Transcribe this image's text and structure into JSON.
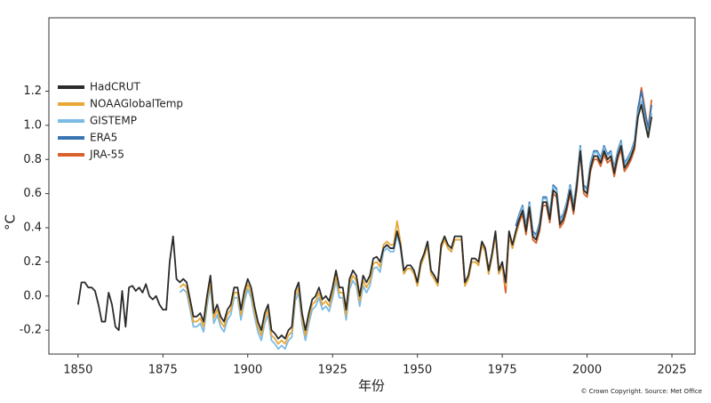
{
  "chart_data": {
    "type": "line",
    "y_label": "°C",
    "x_label": "年份",
    "credit": "© Crown Copyright. Source: Met Office",
    "xlim": [
      1841.4,
      2031.8
    ],
    "ylim": [
      -0.34,
      1.63
    ],
    "xticks": [
      1850,
      1875,
      1900,
      1925,
      1950,
      1975,
      2000,
      2025
    ],
    "yticks": [
      -0.2,
      {
        "value": 0,
        "label": "0.0"
      },
      0.2,
      0.4,
      0.6,
      0.8,
      {
        "value": 1,
        "label": "1.0"
      },
      1.2
    ],
    "legend": "upper left",
    "x": [
      1850,
      1851,
      1852,
      1853,
      1854,
      1855,
      1856,
      1857,
      1858,
      1859,
      1860,
      1861,
      1862,
      1863,
      1864,
      1865,
      1866,
      1867,
      1868,
      1869,
      1870,
      1871,
      1872,
      1873,
      1874,
      1875,
      1876,
      1877,
      1878,
      1879,
      1880,
      1881,
      1882,
      1883,
      1884,
      1885,
      1886,
      1887,
      1888,
      1889,
      1890,
      1891,
      1892,
      1893,
      1894,
      1895,
      1896,
      1897,
      1898,
      1899,
      1900,
      1901,
      1902,
      1903,
      1904,
      1905,
      1906,
      1907,
      1908,
      1909,
      1910,
      1911,
      1912,
      1913,
      1914,
      1915,
      1916,
      1917,
      1918,
      1919,
      1920,
      1921,
      1922,
      1923,
      1924,
      1925,
      1926,
      1927,
      1928,
      1929,
      1930,
      1931,
      1932,
      1933,
      1934,
      1935,
      1936,
      1937,
      1938,
      1939,
      1940,
      1941,
      1942,
      1943,
      1944,
      1945,
      1946,
      1947,
      1948,
      1949,
      1950,
      1951,
      1952,
      1953,
      1954,
      1955,
      1956,
      1957,
      1958,
      1959,
      1960,
      1961,
      1962,
      1963,
      1964,
      1965,
      1966,
      1967,
      1968,
      1969,
      1970,
      1971,
      1972,
      1973,
      1974,
      1975,
      1976,
      1977,
      1978,
      1979,
      1980,
      1981,
      1982,
      1983,
      1984,
      1985,
      1986,
      1987,
      1988,
      1989,
      1990,
      1991,
      1992,
      1993,
      1994,
      1995,
      1996,
      1997,
      1998,
      1999,
      2000,
      2001,
      2002,
      2003,
      2004,
      2005,
      2006,
      2007,
      2008,
      2009,
      2010,
      2011,
      2012,
      2013,
      2014,
      2015,
      2016,
      2017,
      2018,
      2019
    ],
    "series": [
      {
        "name": "HadCRUT",
        "color": "#2b2b2b",
        "values": [
          -0.05,
          0.08,
          0.08,
          0.05,
          0.05,
          0.03,
          -0.05,
          -0.15,
          -0.15,
          0.02,
          -0.05,
          -0.18,
          -0.2,
          0.03,
          -0.18,
          0.05,
          0.06,
          0.03,
          0.05,
          0.02,
          0.07,
          0,
          -0.02,
          0,
          -0.05,
          -0.08,
          -0.08,
          0.2,
          0.35,
          0.1,
          0.08,
          0.1,
          0.08,
          -0.02,
          -0.12,
          -0.12,
          -0.1,
          -0.15,
          0,
          0.12,
          -0.1,
          -0.05,
          -0.12,
          -0.15,
          -0.08,
          -0.05,
          0.05,
          0.05,
          -0.08,
          0.03,
          0.1,
          0.05,
          -0.06,
          -0.15,
          -0.2,
          -0.1,
          -0.05,
          -0.2,
          -0.22,
          -0.25,
          -0.23,
          -0.25,
          -0.2,
          -0.18,
          0.03,
          0.08,
          -0.1,
          -0.2,
          -0.1,
          -0.02,
          0,
          0.05,
          -0.02,
          0,
          -0.03,
          0.05,
          0.15,
          0.05,
          0.05,
          -0.08,
          0.1,
          0.15,
          0.12,
          0,
          0.12,
          0.08,
          0.12,
          0.22,
          0.23,
          0.2,
          0.28,
          0.3,
          0.28,
          0.28,
          0.38,
          0.3,
          0.15,
          0.18,
          0.18,
          0.15,
          0.08,
          0.2,
          0.25,
          0.32,
          0.15,
          0.12,
          0.08,
          0.3,
          0.35,
          0.3,
          0.28,
          0.35,
          0.35,
          0.35,
          0.08,
          0.12,
          0.22,
          0.22,
          0.2,
          0.32,
          0.28,
          0.15,
          0.25,
          0.38,
          0.15,
          0.2,
          0.08,
          0.38,
          0.3,
          0.38,
          0.45,
          0.5,
          0.38,
          0.52,
          0.35,
          0.33,
          0.4,
          0.55,
          0.55,
          0.45,
          0.62,
          0.6,
          0.42,
          0.45,
          0.52,
          0.62,
          0.5,
          0.65,
          0.85,
          0.62,
          0.6,
          0.75,
          0.82,
          0.82,
          0.78,
          0.85,
          0.8,
          0.82,
          0.72,
          0.82,
          0.88,
          0.75,
          0.78,
          0.82,
          0.88,
          1.05,
          1.12,
          1.02,
          0.93,
          1.05
        ]
      },
      {
        "name": "NOAAGlobalTemp",
        "color": "#e8a838",
        "values": [
          null,
          null,
          null,
          null,
          null,
          null,
          null,
          null,
          null,
          null,
          null,
          null,
          null,
          null,
          null,
          null,
          null,
          null,
          null,
          null,
          null,
          null,
          null,
          null,
          null,
          null,
          null,
          null,
          null,
          null,
          0.05,
          0.07,
          0.05,
          -0.05,
          -0.15,
          -0.15,
          -0.13,
          -0.18,
          -0.03,
          0.09,
          -0.13,
          -0.08,
          -0.15,
          -0.18,
          -0.11,
          -0.08,
          0.02,
          0.02,
          -0.11,
          0,
          0.07,
          0.02,
          -0.09,
          -0.18,
          -0.23,
          -0.13,
          -0.08,
          -0.23,
          -0.25,
          -0.28,
          -0.26,
          -0.28,
          -0.23,
          -0.21,
          0,
          0.05,
          -0.13,
          -0.23,
          -0.13,
          -0.05,
          -0.03,
          0.02,
          -0.05,
          -0.03,
          -0.06,
          0.02,
          0.12,
          0.02,
          0.02,
          -0.11,
          0.07,
          0.12,
          0.09,
          -0.03,
          0.09,
          0.05,
          0.09,
          0.19,
          0.2,
          0.17,
          0.3,
          0.32,
          0.3,
          0.3,
          0.44,
          0.32,
          0.13,
          0.16,
          0.16,
          0.13,
          0.06,
          0.18,
          0.23,
          0.3,
          0.13,
          0.1,
          0.06,
          0.28,
          0.33,
          0.28,
          0.26,
          0.33,
          0.33,
          0.33,
          0.06,
          0.1,
          0.2,
          0.2,
          0.18,
          0.3,
          0.26,
          0.13,
          0.23,
          0.36,
          0.13,
          0.18,
          0.06,
          0.36,
          0.28,
          0.36,
          0.45,
          0.5,
          0.38,
          0.52,
          0.35,
          0.33,
          0.4,
          0.55,
          0.55,
          0.45,
          0.62,
          0.6,
          0.42,
          0.45,
          0.52,
          0.62,
          0.5,
          0.65,
          0.85,
          0.62,
          0.6,
          0.75,
          0.82,
          0.82,
          0.78,
          0.85,
          0.8,
          0.82,
          0.72,
          0.82,
          0.88,
          0.75,
          0.78,
          0.82,
          0.88,
          1.05,
          1.12,
          1.02,
          0.93,
          1.05
        ]
      },
      {
        "name": "GISTEMP",
        "color": "#7bbbe6",
        "values": [
          null,
          null,
          null,
          null,
          null,
          null,
          null,
          null,
          null,
          null,
          null,
          null,
          null,
          null,
          null,
          null,
          null,
          null,
          null,
          null,
          null,
          null,
          null,
          null,
          null,
          null,
          null,
          null,
          null,
          null,
          0.02,
          0.04,
          0.02,
          -0.08,
          -0.18,
          -0.18,
          -0.16,
          -0.21,
          -0.06,
          0.06,
          -0.16,
          -0.11,
          -0.18,
          -0.21,
          -0.14,
          -0.11,
          -0.01,
          -0.01,
          -0.14,
          -0.03,
          0.04,
          -0.01,
          -0.12,
          -0.21,
          -0.26,
          -0.16,
          -0.11,
          -0.26,
          -0.28,
          -0.31,
          -0.29,
          -0.31,
          -0.26,
          -0.24,
          -0.03,
          0.02,
          -0.16,
          -0.26,
          -0.16,
          -0.08,
          -0.06,
          -0.01,
          -0.08,
          -0.06,
          -0.09,
          -0.01,
          0.09,
          -0.01,
          -0.01,
          -0.14,
          0.04,
          0.09,
          0.06,
          -0.06,
          0.06,
          0.02,
          0.06,
          0.16,
          0.17,
          0.14,
          0.26,
          0.28,
          0.26,
          0.26,
          0.36,
          0.28,
          0.13,
          0.16,
          0.16,
          0.13,
          0.06,
          0.18,
          0.23,
          0.3,
          0.13,
          0.1,
          0.06,
          0.28,
          0.33,
          0.28,
          0.26,
          0.33,
          0.33,
          0.33,
          0.06,
          0.1,
          0.2,
          0.2,
          0.18,
          0.3,
          0.26,
          0.13,
          0.23,
          0.36,
          0.13,
          0.18,
          0.06,
          0.36,
          0.28,
          0.36,
          0.47,
          0.52,
          0.4,
          0.54,
          0.37,
          0.35,
          0.42,
          0.57,
          0.57,
          0.47,
          0.64,
          0.62,
          0.44,
          0.47,
          0.54,
          0.64,
          0.52,
          0.67,
          0.87,
          0.64,
          0.62,
          0.77,
          0.84,
          0.84,
          0.8,
          0.87,
          0.82,
          0.84,
          0.74,
          0.84,
          0.9,
          0.77,
          0.8,
          0.84,
          0.9,
          1.07,
          1.14,
          1.04,
          0.95,
          1.07
        ]
      },
      {
        "name": "ERA5",
        "color": "#3a74b0",
        "values": [
          null,
          null,
          null,
          null,
          null,
          null,
          null,
          null,
          null,
          null,
          null,
          null,
          null,
          null,
          null,
          null,
          null,
          null,
          null,
          null,
          null,
          null,
          null,
          null,
          null,
          null,
          null,
          null,
          null,
          null,
          null,
          null,
          null,
          null,
          null,
          null,
          null,
          null,
          null,
          null,
          null,
          null,
          null,
          null,
          null,
          null,
          null,
          null,
          null,
          null,
          null,
          null,
          null,
          null,
          null,
          null,
          null,
          null,
          null,
          null,
          null,
          null,
          null,
          null,
          null,
          null,
          null,
          null,
          null,
          null,
          null,
          null,
          null,
          null,
          null,
          null,
          null,
          null,
          null,
          null,
          null,
          null,
          null,
          null,
          null,
          null,
          null,
          null,
          null,
          null,
          null,
          null,
          null,
          null,
          null,
          null,
          null,
          null,
          null,
          null,
          null,
          null,
          null,
          null,
          null,
          null,
          null,
          null,
          null,
          null,
          null,
          null,
          null,
          null,
          null,
          null,
          null,
          null,
          null,
          null,
          null,
          null,
          null,
          null,
          null,
          null,
          null,
          null,
          null,
          0.41,
          0.48,
          0.53,
          0.41,
          0.55,
          0.38,
          0.36,
          0.43,
          0.58,
          0.58,
          0.48,
          0.65,
          0.63,
          0.45,
          0.48,
          0.55,
          0.65,
          0.53,
          0.68,
          0.88,
          0.65,
          0.63,
          0.78,
          0.85,
          0.85,
          0.81,
          0.88,
          0.83,
          0.85,
          0.75,
          0.85,
          0.91,
          0.78,
          0.81,
          0.85,
          0.91,
          1.1,
          1.2,
          1.08,
          0.98,
          1.12
        ]
      },
      {
        "name": "JRA-55",
        "color": "#d9622b",
        "values": [
          null,
          null,
          null,
          null,
          null,
          null,
          null,
          null,
          null,
          null,
          null,
          null,
          null,
          null,
          null,
          null,
          null,
          null,
          null,
          null,
          null,
          null,
          null,
          null,
          null,
          null,
          null,
          null,
          null,
          null,
          null,
          null,
          null,
          null,
          null,
          null,
          null,
          null,
          null,
          null,
          null,
          null,
          null,
          null,
          null,
          null,
          null,
          null,
          null,
          null,
          null,
          null,
          null,
          null,
          null,
          null,
          null,
          null,
          null,
          null,
          null,
          null,
          null,
          null,
          null,
          null,
          null,
          null,
          null,
          null,
          null,
          null,
          null,
          null,
          null,
          null,
          null,
          null,
          null,
          null,
          null,
          null,
          null,
          null,
          null,
          null,
          null,
          null,
          null,
          null,
          null,
          null,
          null,
          null,
          null,
          null,
          null,
          null,
          null,
          null,
          null,
          null,
          null,
          null,
          null,
          null,
          null,
          null,
          0.33,
          0.28,
          0.26,
          0.33,
          0.33,
          0.33,
          0.06,
          0.1,
          0.2,
          0.2,
          0.18,
          0.3,
          0.26,
          0.13,
          0.23,
          0.36,
          0.13,
          0.18,
          0.02,
          0.36,
          0.28,
          0.36,
          0.43,
          0.48,
          0.36,
          0.5,
          0.33,
          0.31,
          0.38,
          0.53,
          0.53,
          0.43,
          0.6,
          0.58,
          0.4,
          0.43,
          0.5,
          0.6,
          0.48,
          0.63,
          0.85,
          0.6,
          0.58,
          0.73,
          0.8,
          0.8,
          0.76,
          0.83,
          0.78,
          0.8,
          0.7,
          0.8,
          0.86,
          0.73,
          0.76,
          0.8,
          0.86,
          1.08,
          1.22,
          1.1,
          0.98,
          1.15
        ]
      }
    ]
  }
}
